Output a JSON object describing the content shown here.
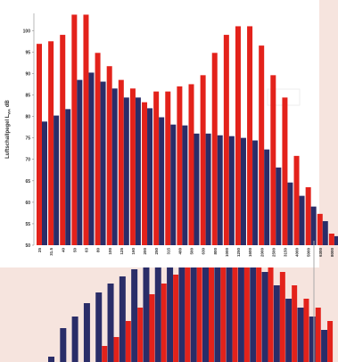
{
  "chart_data": [
    {
      "type": "bar",
      "y_label": "Luftschallpegel L",
      "y_label_sub": "WA",
      "y_label_unit": "dB",
      "categories": [
        "25",
        "31.5",
        "40",
        "50",
        "63",
        "80",
        "100",
        "125",
        "160",
        "200",
        "250",
        "315",
        "400",
        "500",
        "630",
        "800",
        "1000",
        "1250",
        "1600",
        "2000",
        "2500",
        "3150",
        "4000",
        "5000",
        "6300",
        "8000"
      ],
      "series": [
        {
          "color": "#e3221b",
          "values": [
            96.9,
            97.5,
            99,
            103.7,
            103.7,
            94.8,
            91.7,
            88.5,
            86.5,
            83.3,
            85.8,
            85.8,
            87,
            87.5,
            89.6,
            94.8,
            99,
            101,
            101,
            96.5,
            89.6,
            84.4,
            70.8,
            63.5,
            57.3,
            52.7
          ]
        },
        {
          "color": "#2a2d68",
          "values": [
            78.8,
            80.2,
            81.7,
            88.5,
            90.2,
            88.1,
            86.5,
            84.4,
            84.4,
            81.9,
            79.8,
            78.1,
            77.9,
            76,
            76,
            75.6,
            75.4,
            75,
            74.4,
            72.3,
            68.1,
            64.6,
            61.5,
            59,
            55.6,
            52.1
          ]
        }
      ],
      "ylim": [
        50,
        104
      ],
      "yticks": [
        50,
        55,
        60,
        65,
        70,
        75,
        80,
        85,
        90,
        95,
        100
      ]
    },
    {
      "type": "bar",
      "series": [
        {
          "color": "#2a2d68",
          "values": [
            6,
            38,
            51,
            66,
            78,
            88,
            96,
            104,
            108,
            108,
            106,
            108,
            116,
            126,
            126,
            124,
            121,
            114,
            101,
            86,
            71,
            61,
            51,
            36,
            null,
            null
          ]
        },
        {
          "color": "#e3221b",
          "values": [
            null,
            null,
            null,
            null,
            18,
            28,
            46,
            61,
            76,
            88,
            98,
            108,
            121,
            128,
            128,
            134,
            134,
            128,
            116,
            101,
            86,
            71,
            61,
            46,
            26,
            6
          ]
        }
      ],
      "ylim": [
        0,
        130
      ]
    }
  ]
}
